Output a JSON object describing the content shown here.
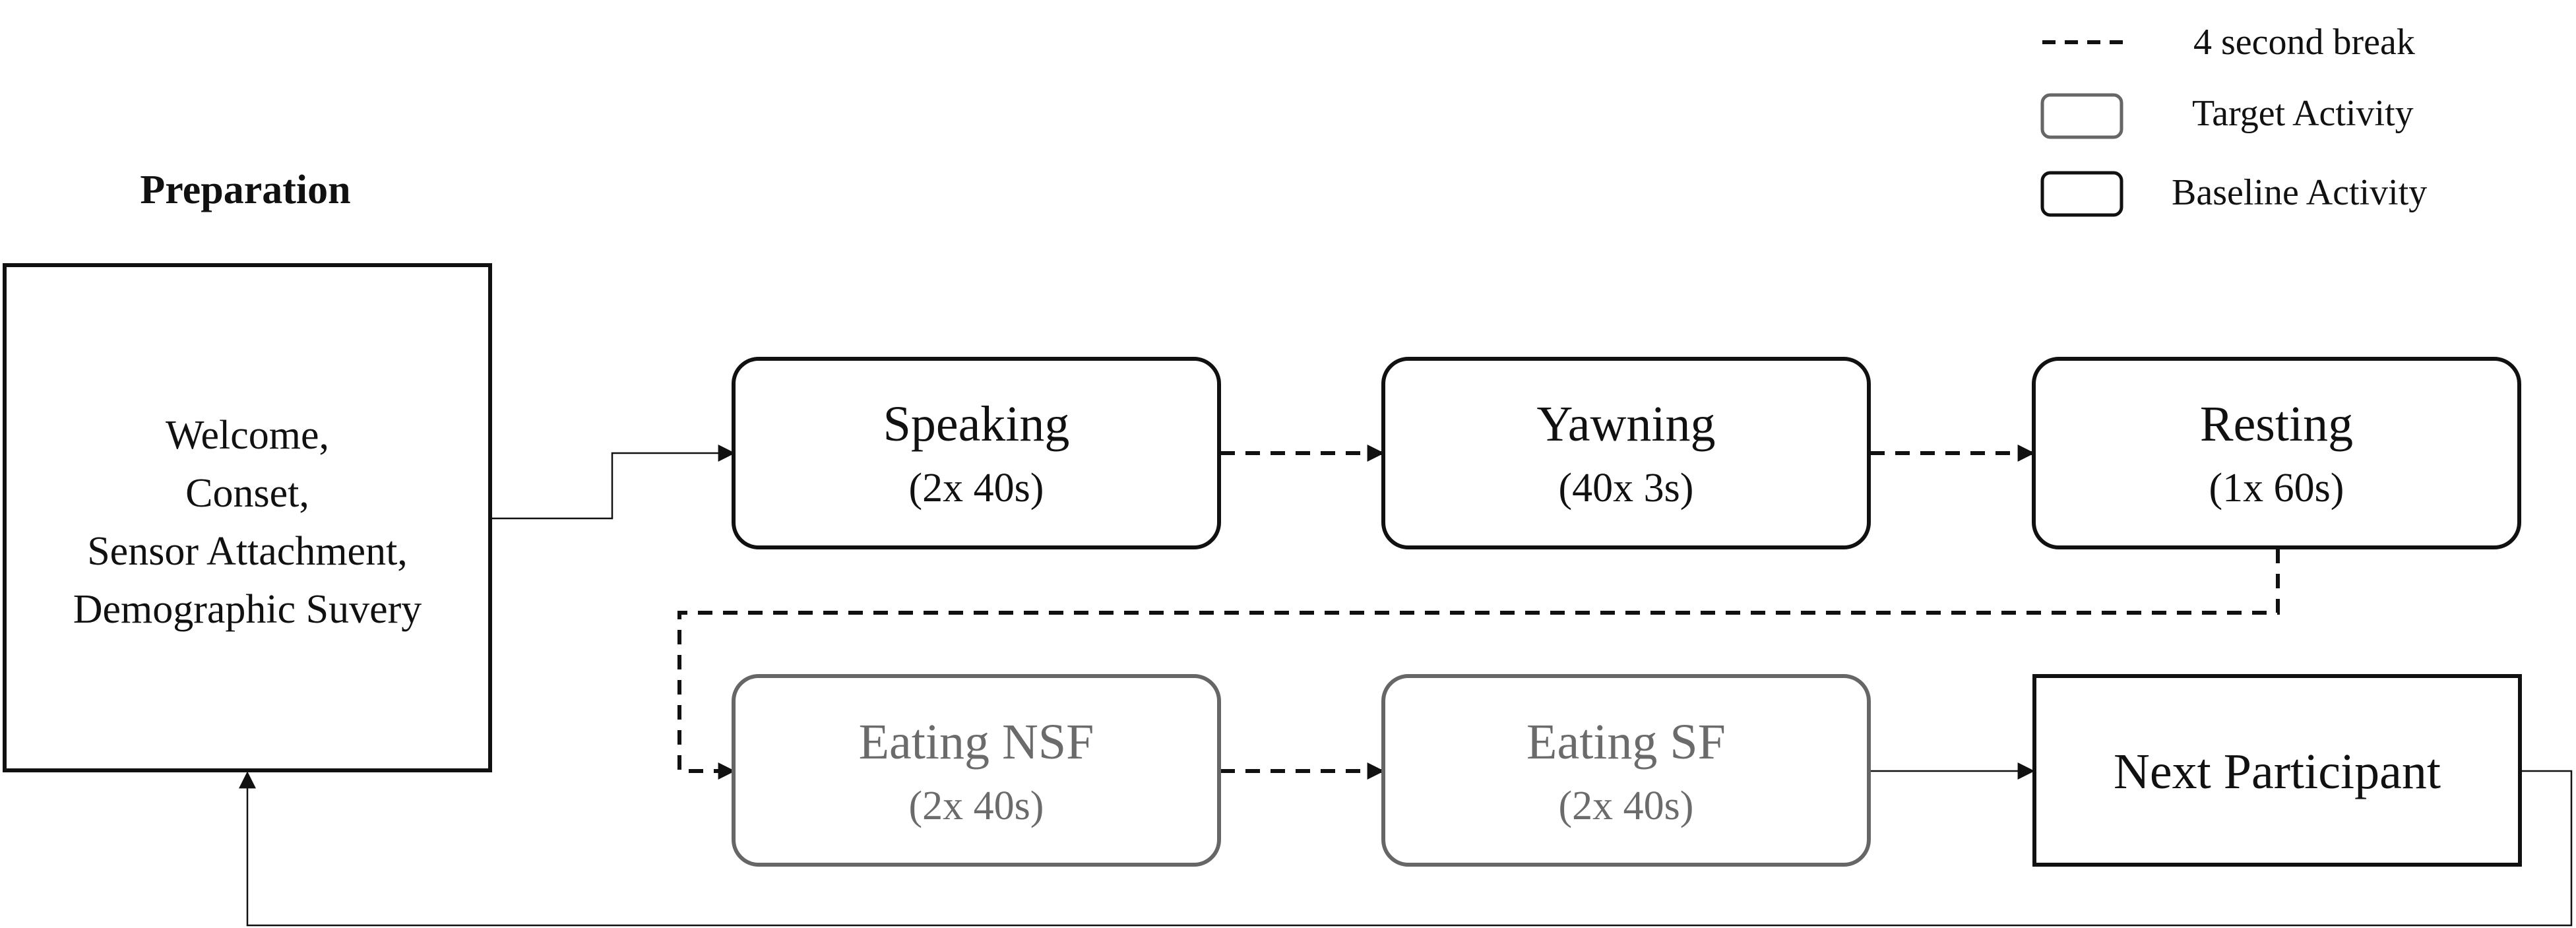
{
  "title": "Preparation",
  "legend": {
    "break_label": "4 second break",
    "target_label": "Target Activity",
    "baseline_label": "Baseline Activity"
  },
  "colors": {
    "baseline_stroke": "#111111",
    "target_stroke": "#666666",
    "target_text": "#6b6b6b",
    "text": "#111111"
  },
  "nodes": {
    "preparation": {
      "line1": "Welcome,",
      "line2": "Conset,",
      "line3": "Sensor Attachment,",
      "line4": "Demographic Suvery"
    },
    "speaking": {
      "name": "Speaking",
      "detail": "(2x 40s)",
      "kind": "baseline"
    },
    "yawning": {
      "name": "Yawning",
      "detail": "(40x 3s)",
      "kind": "baseline"
    },
    "resting": {
      "name": "Resting",
      "detail": "(1x 60s)",
      "kind": "baseline"
    },
    "eating_nsf": {
      "name": "Eating NSF",
      "detail": "(2x 40s)",
      "kind": "target"
    },
    "eating_sf": {
      "name": "Eating SF",
      "detail": "(2x 40s)",
      "kind": "target"
    },
    "next": {
      "name": "Next Participant"
    }
  },
  "edges": [
    {
      "from": "preparation",
      "to": "speaking",
      "style": "solid"
    },
    {
      "from": "speaking",
      "to": "yawning",
      "style": "dashed"
    },
    {
      "from": "yawning",
      "to": "resting",
      "style": "dashed"
    },
    {
      "from": "resting",
      "to": "eating_nsf",
      "style": "dashed"
    },
    {
      "from": "eating_nsf",
      "to": "eating_sf",
      "style": "dashed"
    },
    {
      "from": "eating_sf",
      "to": "next",
      "style": "solid"
    },
    {
      "from": "next",
      "to": "preparation",
      "style": "solid"
    }
  ]
}
